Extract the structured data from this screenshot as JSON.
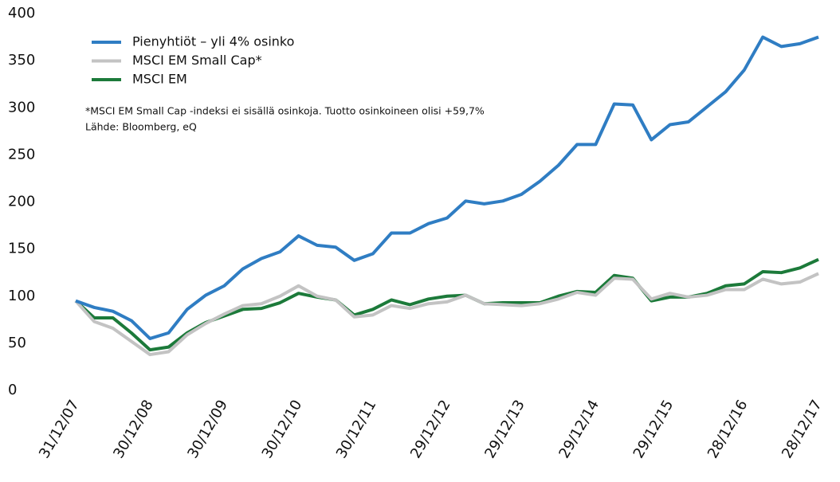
{
  "chart_data": {
    "type": "line",
    "categories": [
      "31/12/07",
      null,
      null,
      null,
      "30/12/08",
      null,
      null,
      null,
      "30/12/09",
      null,
      null,
      null,
      "30/12/10",
      null,
      null,
      null,
      "30/12/11",
      null,
      null,
      null,
      "29/12/12",
      null,
      null,
      null,
      "29/12/13",
      null,
      null,
      null,
      "29/12/14",
      null,
      null,
      null,
      "29/12/15",
      null,
      null,
      null,
      "28/12/16",
      null,
      null,
      null,
      "28/12/17"
    ],
    "series": [
      {
        "name": "Pienyhtiöt – yli 4% osinko",
        "color": "#2f7dc3",
        "values": [
          95,
          88,
          84,
          74,
          55,
          61,
          86,
          101,
          111,
          129,
          140,
          147,
          164,
          154,
          152,
          138,
          145,
          167,
          167,
          177,
          183,
          201,
          198,
          201,
          208,
          222,
          239,
          261,
          261,
          304,
          303,
          266,
          282,
          285,
          301,
          317,
          340,
          375,
          365,
          368,
          375
        ]
      },
      {
        "name": "MSCI EM Small Cap*",
        "color": "#c3c3c3",
        "values": [
          95,
          73,
          66,
          52,
          38,
          41,
          59,
          71,
          81,
          90,
          92,
          100,
          111,
          100,
          96,
          78,
          80,
          90,
          87,
          92,
          94,
          101,
          92,
          91,
          90,
          92,
          97,
          104,
          101,
          119,
          118,
          97,
          103,
          99,
          101,
          107,
          107,
          118,
          113,
          115,
          124
        ]
      },
      {
        "name": "MSCI EM",
        "color": "#1c7a3a",
        "values": [
          95,
          77,
          77,
          61,
          43,
          46,
          61,
          72,
          79,
          86,
          87,
          93,
          103,
          99,
          96,
          80,
          86,
          96,
          91,
          97,
          100,
          101,
          92,
          93,
          93,
          93,
          100,
          105,
          104,
          122,
          119,
          95,
          99,
          99,
          103,
          111,
          113,
          126,
          125,
          130,
          139
        ]
      }
    ],
    "annotations": [
      "*MSCI EM Small Cap -indeksi ei sisällä osinkoja. Tuotto osinkoineen olisi +59,7%",
      "Lähde: Bloomberg, eQ"
    ],
    "ylim": [
      0,
      400
    ],
    "yticks": [
      0,
      50,
      100,
      150,
      200,
      250,
      300,
      350,
      400
    ],
    "grid": false
  }
}
